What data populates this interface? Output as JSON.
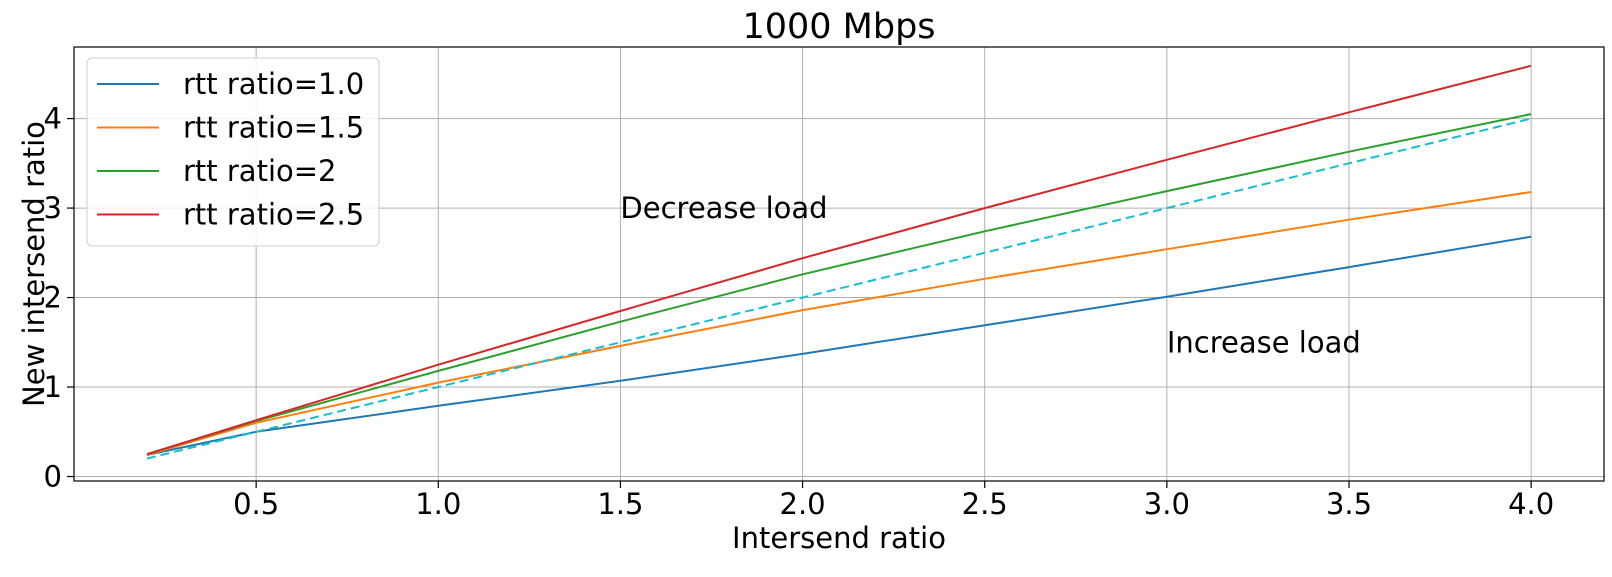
{
  "chart_data": {
    "type": "line",
    "title": "1000 Mbps",
    "xlabel": "Intersend ratio",
    "ylabel": "New intersend ratio",
    "xlim": [
      0.0,
      4.2
    ],
    "ylim": [
      -0.05,
      4.8
    ],
    "xticks": [
      0.5,
      1.0,
      1.5,
      2.0,
      2.5,
      3.0,
      3.5,
      4.0
    ],
    "xtick_labels": [
      "0.5",
      "1.0",
      "1.5",
      "2.0",
      "2.5",
      "3.0",
      "3.5",
      "4.0"
    ],
    "yticks": [
      0,
      1,
      2,
      3,
      4
    ],
    "ytick_labels": [
      "0",
      "1",
      "2",
      "3",
      "4"
    ],
    "grid": true,
    "legend_position": "top-left",
    "x": [
      0.2,
      0.5,
      1.0,
      1.5,
      2.0,
      2.5,
      3.0,
      3.5,
      4.0
    ],
    "series": [
      {
        "name": "rtt ratio=1.0",
        "color": "#1f77b4",
        "style": "solid",
        "in_legend": true,
        "values": [
          0.24,
          0.5,
          0.79,
          1.07,
          1.37,
          1.69,
          2.01,
          2.34,
          2.68
        ]
      },
      {
        "name": "rtt ratio=1.5",
        "color": "#ff7f0e",
        "style": "solid",
        "in_legend": true,
        "values": [
          0.24,
          0.6,
          1.05,
          1.46,
          1.86,
          2.21,
          2.54,
          2.87,
          3.18
        ]
      },
      {
        "name": "rtt ratio=2",
        "color": "#2ca02c",
        "style": "solid",
        "in_legend": true,
        "values": [
          0.25,
          0.62,
          1.18,
          1.73,
          2.26,
          2.74,
          3.19,
          3.63,
          4.05
        ]
      },
      {
        "name": "rtt ratio=2.5",
        "color": "#d62728",
        "style": "solid",
        "in_legend": true,
        "values": [
          0.25,
          0.63,
          1.25,
          1.85,
          2.44,
          3.0,
          3.54,
          4.07,
          4.59
        ]
      },
      {
        "name": "",
        "color": "#17becf",
        "style": "dashed",
        "in_legend": false,
        "values": [
          0.2,
          0.5,
          1.0,
          1.5,
          2.0,
          2.5,
          3.0,
          3.5,
          4.0
        ]
      }
    ],
    "annotations": [
      {
        "text": "Decrease load",
        "x": 1.5,
        "y": 3.0
      },
      {
        "text": "Increase load",
        "x": 3.0,
        "y": 1.5
      }
    ]
  }
}
